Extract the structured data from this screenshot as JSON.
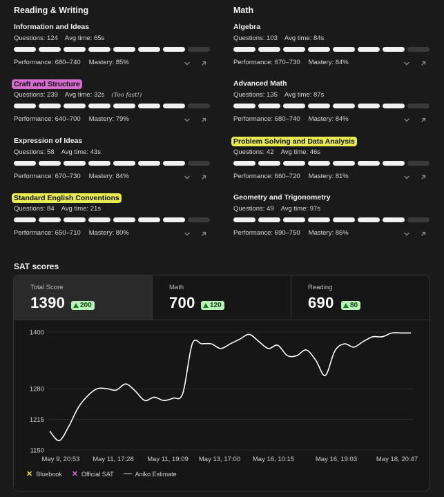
{
  "reading_writing": {
    "title": "Reading & Writing",
    "topics": [
      {
        "name": "Information and Ideas",
        "questions": "Questions: 124",
        "avg_time": "Avg time: 65s",
        "note": "",
        "filled": 7,
        "total": 8,
        "performance": "Performance: 680–740",
        "mastery": "Mastery: 85%",
        "highlight": ""
      },
      {
        "name": "Craft and Structure",
        "questions": "Questions: 239",
        "avg_time": "Avg time: 32s",
        "note": "(Too fast!)",
        "filled": 7,
        "total": 8,
        "performance": "Performance: 640–700",
        "mastery": "Mastery: 79%",
        "highlight": "#d56cd0"
      },
      {
        "name": "Expression of Ideas",
        "questions": "Questions: 58",
        "avg_time": "Avg time: 43s",
        "note": "",
        "filled": 7,
        "total": 8,
        "performance": "Performance: 670–730",
        "mastery": "Mastery: 84%",
        "highlight": ""
      },
      {
        "name": "Standard English Conventions",
        "questions": "Questions: 84",
        "avg_time": "Avg time: 21s",
        "note": "",
        "filled": 7,
        "total": 8,
        "performance": "Performance: 650–710",
        "mastery": "Mastery: 80%",
        "highlight": "#e8ea52"
      }
    ]
  },
  "math": {
    "title": "Math",
    "topics": [
      {
        "name": "Algebra",
        "questions": "Questions: 103",
        "avg_time": "Avg time: 84s",
        "note": "",
        "filled": 7,
        "total": 8,
        "performance": "Performance: 670–730",
        "mastery": "Mastery: 84%",
        "highlight": ""
      },
      {
        "name": "Advanced Math",
        "questions": "Questions: 135",
        "avg_time": "Avg time: 87s",
        "note": "",
        "filled": 7,
        "total": 8,
        "performance": "Performance: 680–740",
        "mastery": "Mastery: 84%",
        "highlight": ""
      },
      {
        "name": "Problem Solving and Data Analysis",
        "questions": "Questions: 42",
        "avg_time": "Avg time: 46s",
        "note": "",
        "filled": 7,
        "total": 8,
        "performance": "Performance: 660–720",
        "mastery": "Mastery: 81%",
        "highlight": "#e8ea52"
      },
      {
        "name": "Geometry and Trigonometry",
        "questions": "Questions: 49",
        "avg_time": "Avg time: 97s",
        "note": "",
        "filled": 7,
        "total": 8,
        "performance": "Performance: 690–750",
        "mastery": "Mastery: 86%",
        "highlight": ""
      }
    ]
  },
  "sat": {
    "title": "SAT scores",
    "scores": [
      {
        "label": "Total Score",
        "value": "1390",
        "delta": "200",
        "active": true
      },
      {
        "label": "Math",
        "value": "700",
        "delta": "120",
        "active": false
      },
      {
        "label": "Reading",
        "value": "690",
        "delta": "80",
        "active": false
      }
    ],
    "legend": [
      {
        "symbol": "✕",
        "label": "Bluebook",
        "color": "#e4e03a",
        "icon": "x-mark-icon"
      },
      {
        "symbol": "✕",
        "label": "Official SAT",
        "color": "#d56cd0",
        "icon": "x-mark-icon"
      },
      {
        "symbol": "",
        "label": "Aniko Estimate",
        "color": "#e0e0e0",
        "icon": "line-icon"
      }
    ]
  },
  "chart_data": {
    "type": "line",
    "title": "",
    "xlabel": "",
    "ylabel": "",
    "y_ticks": [
      1150,
      1215,
      1280,
      1400
    ],
    "ylim": [
      1150,
      1400
    ],
    "x_tick_labels": [
      "May 9, 20:53",
      "May 11, 17:28",
      "May 11, 19:09",
      "May 13, 17:00",
      "May 16, 10:15",
      "May 16, 19:03",
      "May 18, 20:47"
    ],
    "grid": true,
    "series": [
      {
        "name": "Aniko Estimate",
        "color": "#ffffff",
        "values": [
          1190,
          1170,
          1200,
          1240,
          1265,
          1280,
          1280,
          1277,
          1290,
          1275,
          1255,
          1262,
          1255,
          1260,
          1270,
          1375,
          1375,
          1375,
          1365,
          1375,
          1385,
          1395,
          1380,
          1365,
          1372,
          1350,
          1350,
          1362,
          1340,
          1308,
          1360,
          1375,
          1368,
          1380,
          1390,
          1390,
          1398,
          1398,
          1398
        ]
      }
    ]
  }
}
